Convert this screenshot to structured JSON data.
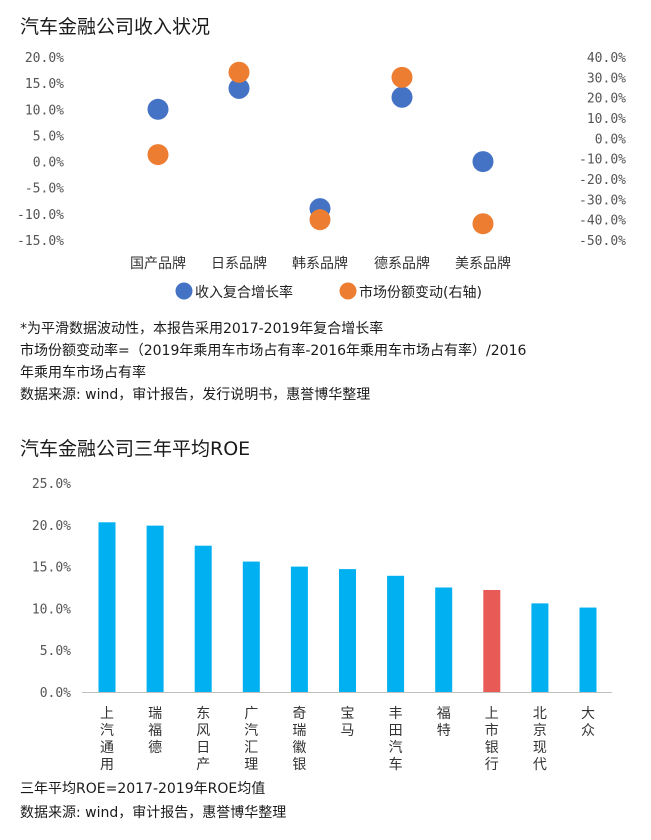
{
  "chart1": {
    "title": "汽车金融公司收入状况",
    "notes": [
      "*为平滑数据波动性，本报告采用2017-2019年复合增长率",
      "  市场份额变动率=（2019年乘用车市场占有率-2016年乘用车市场占有率）/2016",
      "年乘用车市场占有率",
      "数据来源: wind，审计报告，发行说明书，惠誉博华整理"
    ],
    "chart_data": {
      "type": "scatter",
      "categories": [
        "国产品牌",
        "日系品牌",
        "韩系品牌",
        "德系品牌",
        "美系品牌"
      ],
      "y_left_ticks": [
        "20.0%",
        "15.0%",
        "10.0%",
        "5.0%",
        "0.0%",
        "-5.0%",
        "-10.0%",
        "-15.0%"
      ],
      "y_right_ticks": [
        "40.0%",
        "30.0%",
        "20.0%",
        "10.0%",
        "0.0%",
        "-10.0%",
        "-20.0%",
        "-30.0%",
        "-40.0%",
        "-50.0%"
      ],
      "ylim_left": [
        -15,
        20
      ],
      "ylim_right": [
        -50,
        40
      ],
      "series": [
        {
          "name": "收入复合增长率",
          "axis": "left",
          "color": "#4472C4",
          "values": [
            10.0,
            14.0,
            -9.0,
            12.3,
            0.0
          ]
        },
        {
          "name": "市场份额变动(右轴)",
          "axis": "right",
          "color": "#ED7D31",
          "values": [
            -8.0,
            32.5,
            -40.0,
            30.0,
            -42.0
          ]
        }
      ]
    }
  },
  "chart2": {
    "title": "汽车金融公司三年平均ROE",
    "notes": [
      "三年平均ROE=2017-2019年ROE均值",
      "数据来源: wind，审计报告，惠誉博华整理"
    ],
    "chart_data": {
      "type": "bar",
      "categories": [
        "上汽通用",
        "瑞福德",
        "东风日产",
        "广汽汇理",
        "奇瑞徽银",
        "宝马",
        "丰田汽车",
        "福特",
        "上市银行",
        "北京现代",
        "大众"
      ],
      "values": [
        20.3,
        19.9,
        17.5,
        15.6,
        15.0,
        14.7,
        13.9,
        12.5,
        12.2,
        10.6,
        10.1
      ],
      "colors": [
        "#00B0F0",
        "#00B0F0",
        "#00B0F0",
        "#00B0F0",
        "#00B0F0",
        "#00B0F0",
        "#00B0F0",
        "#00B0F0",
        "#E85A55",
        "#00B0F0",
        "#00B0F0"
      ],
      "y_ticks": [
        "25.0%",
        "20.0%",
        "15.0%",
        "10.0%",
        "5.0%",
        "0.0%"
      ],
      "ylim": [
        0,
        25
      ]
    }
  }
}
